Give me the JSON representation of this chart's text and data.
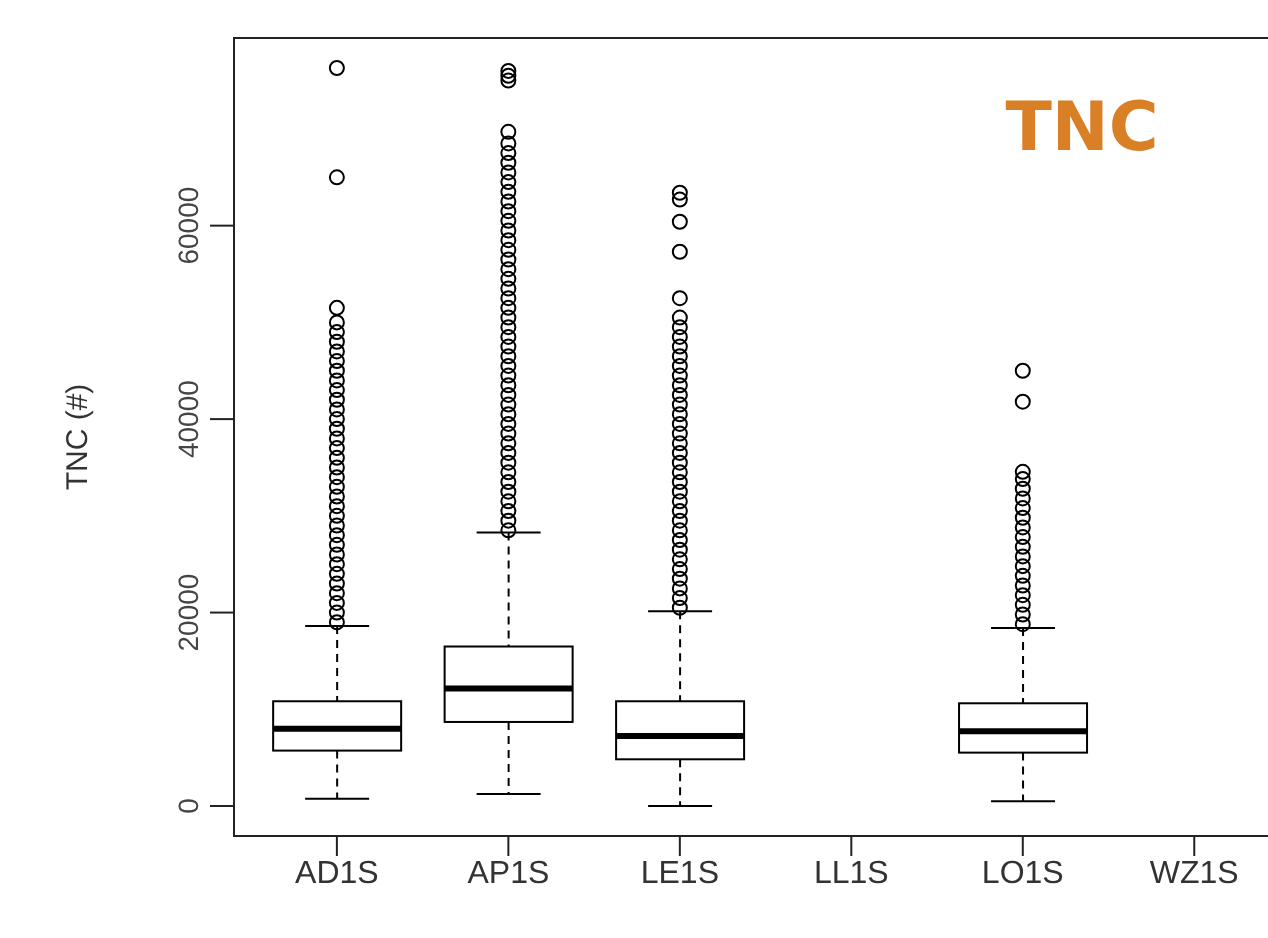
{
  "chart_data": {
    "type": "box",
    "title": "TNC",
    "ylabel": "TNC (#)",
    "categories": [
      "AD1S",
      "AP1S",
      "LE1S",
      "LL1S",
      "LO1S",
      "WZ1S"
    ],
    "ylim": [
      -3100,
      79400
    ],
    "yticks": [
      0,
      20000,
      40000,
      60000
    ],
    "boxes": [
      {
        "low": 750,
        "q1": 5730,
        "median": 8000,
        "q3": 10830,
        "high": 18620,
        "outliers": [
          19000,
          20000,
          21000,
          22000,
          23000,
          24000,
          25000,
          26000,
          27000,
          28000,
          29000,
          30000,
          31000,
          32000,
          33000,
          34000,
          35000,
          36000,
          37000,
          38000,
          39000,
          40000,
          41000,
          42000,
          43000,
          44000,
          45000,
          46000,
          47000,
          48000,
          49000,
          50000,
          51500,
          65000,
          76300
        ]
      },
      {
        "low": 1240,
        "q1": 8690,
        "median": 12140,
        "q3": 16490,
        "high": 28280,
        "outliers": [
          28500,
          29500,
          30500,
          31500,
          32500,
          33500,
          34500,
          35500,
          36500,
          37500,
          38500,
          39500,
          40500,
          41500,
          42500,
          43500,
          44500,
          45500,
          46500,
          47500,
          48500,
          49500,
          50500,
          51500,
          52500,
          53500,
          54500,
          55500,
          56500,
          57500,
          58500,
          59500,
          60500,
          61500,
          62500,
          63500,
          64500,
          65500,
          66500,
          67500,
          68500,
          69700,
          75000,
          75500,
          76000
        ]
      },
      {
        "low": 0,
        "q1": 4830,
        "median": 7240,
        "q3": 10830,
        "high": 20130,
        "outliers": [
          20500,
          21500,
          22500,
          23500,
          24500,
          25500,
          26500,
          27500,
          28500,
          29500,
          30500,
          31500,
          32500,
          33500,
          34500,
          35500,
          36500,
          37500,
          38500,
          39500,
          40500,
          41500,
          42500,
          43500,
          44500,
          45500,
          46500,
          47500,
          48500,
          49500,
          50500,
          52500,
          57300,
          60400,
          62700,
          63400
        ]
      },
      null,
      {
        "low": 480,
        "q1": 5520,
        "median": 7720,
        "q3": 10620,
        "high": 18410,
        "outliers": [
          18800,
          19800,
          20800,
          21800,
          22800,
          23800,
          24800,
          25800,
          26800,
          27800,
          28800,
          29800,
          30800,
          31800,
          32800,
          33800,
          34550,
          41800,
          45000
        ]
      },
      null
    ]
  }
}
